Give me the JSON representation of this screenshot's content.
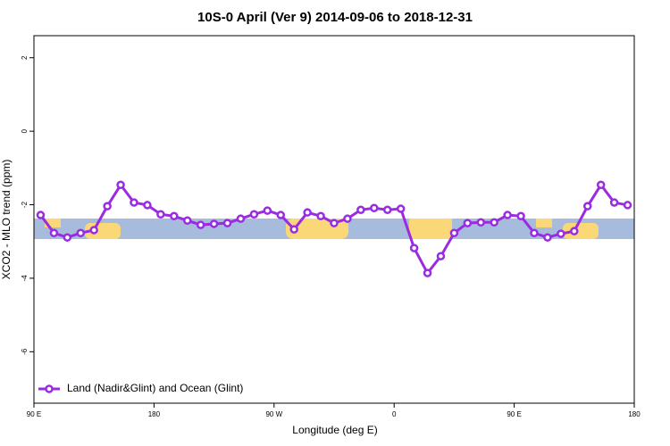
{
  "chart_data": {
    "type": "line",
    "title": "10S-0 April (Ver 9)   2014-09-06 to 2018-12-31",
    "x_label": "Longitude (deg E)",
    "y_label": "XCO2 - MLO trend (ppm)",
    "x": [
      95,
      105,
      115,
      125,
      135,
      145,
      155,
      165,
      175,
      185,
      195,
      205,
      215,
      225,
      235,
      245,
      255,
      265,
      275,
      285,
      295,
      305,
      315,
      325,
      335,
      345,
      355,
      365,
      375,
      385,
      395,
      405,
      415,
      425,
      435,
      445,
      455,
      465,
      475,
      485,
      495,
      505,
      515,
      525,
      535
    ],
    "series": [
      {
        "name": "Land (Nadir&Glint) and Ocean (Glint)",
        "color": "#9a2be2",
        "values": [
          -2.28,
          -2.77,
          -2.89,
          -2.77,
          -2.69,
          -2.04,
          -1.46,
          -1.94,
          -2.01,
          -2.26,
          -2.31,
          -2.43,
          -2.55,
          -2.52,
          -2.5,
          -2.38,
          -2.26,
          -2.16,
          -2.28,
          -2.67,
          -2.21,
          -2.31,
          -2.5,
          -2.38,
          -2.14,
          -2.09,
          -2.14,
          -2.11,
          -3.18,
          -3.86,
          -3.4,
          -2.77,
          -2.5,
          -2.48,
          -2.48,
          -2.28,
          -2.31,
          -2.77,
          -2.89,
          -2.79,
          -2.72,
          -2.04,
          -1.46,
          -1.94,
          -2.01
        ]
      }
    ],
    "xlim": [
      90,
      540
    ],
    "xticks": [
      {
        "value": 90,
        "label": "90 E"
      },
      180,
      {
        "value": 270,
        "label": "90 W"
      },
      {
        "value": 360,
        "label": "0"
      },
      {
        "value": 450,
        "label": "90 E"
      },
      {
        "value": 540,
        "label": "180"
      }
    ],
    "ylim": [
      -7.4,
      2.6
    ],
    "yticks": [
      2,
      0,
      -2,
      -4,
      -6
    ],
    "legend": "bottom-left"
  }
}
